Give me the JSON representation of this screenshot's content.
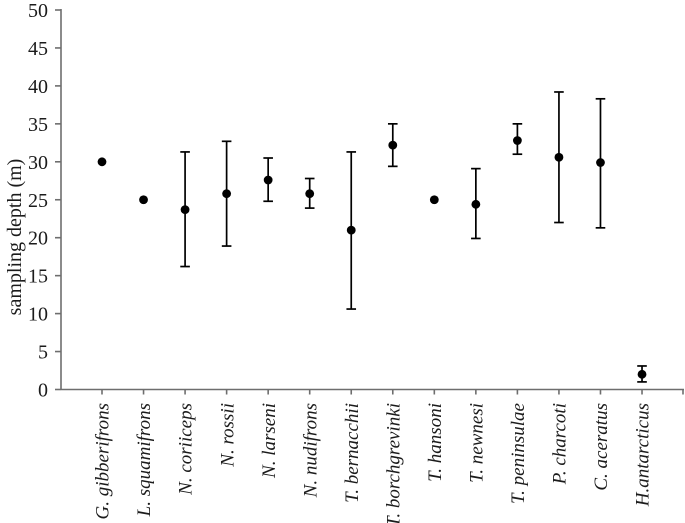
{
  "figure": {
    "background": "#ffffff",
    "axis_color": "#6e6e6e",
    "marker_color": "#000000",
    "text_color": "#1b1b1b"
  },
  "chart_data": {
    "type": "scatter",
    "subtype": "mean-with-error-bars",
    "title": "",
    "xlabel": "",
    "ylabel": "sampling depth (m)",
    "ylim": [
      0,
      50
    ],
    "yticks": [
      0,
      5,
      10,
      15,
      20,
      25,
      30,
      35,
      40,
      45,
      50
    ],
    "grid": false,
    "legend": "none",
    "marker": "filled-circle",
    "categories": [
      "G. gibberifrons",
      "L. squamifrons",
      "N. coriiceps",
      "N. rossii",
      "N. larseni",
      "N. nudifrons",
      "T. bernacchii",
      "T. borchgrevinki",
      "T. hansoni",
      "T. newnesi",
      "T. peninsulae",
      "P. charcoti",
      "C. aceratus",
      "H.antarcticus"
    ],
    "series": [
      {
        "name": "sampling depth",
        "points": [
          {
            "species": "G. gibberifrons",
            "mean": 30.0,
            "lo": null,
            "hi": null
          },
          {
            "species": "L. squamifrons",
            "mean": 25.0,
            "lo": null,
            "hi": null
          },
          {
            "species": "N. coriiceps",
            "mean": 23.7,
            "lo": 16.2,
            "hi": 31.3
          },
          {
            "species": "N. rossii",
            "mean": 25.8,
            "lo": 18.9,
            "hi": 32.7
          },
          {
            "species": "N. larseni",
            "mean": 27.6,
            "lo": 24.8,
            "hi": 30.5
          },
          {
            "species": "N. nudifrons",
            "mean": 25.8,
            "lo": 23.9,
            "hi": 27.8
          },
          {
            "species": "T. bernacchii",
            "mean": 21.0,
            "lo": 10.6,
            "hi": 31.3
          },
          {
            "species": "T. borchgrevinki",
            "mean": 32.2,
            "lo": 29.4,
            "hi": 35.0
          },
          {
            "species": "T. hansoni",
            "mean": 25.0,
            "lo": null,
            "hi": null
          },
          {
            "species": "T. newnesi",
            "mean": 24.4,
            "lo": 19.9,
            "hi": 29.1
          },
          {
            "species": "T. peninsulae",
            "mean": 32.8,
            "lo": 31.0,
            "hi": 35.0
          },
          {
            "species": "P. charcoti",
            "mean": 30.6,
            "lo": 22.0,
            "hi": 39.2
          },
          {
            "species": "C. aceratus",
            "mean": 29.9,
            "lo": 21.3,
            "hi": 38.3
          },
          {
            "species": "H.antarcticus",
            "mean": 2.0,
            "lo": 1.0,
            "hi": 3.1
          }
        ]
      }
    ]
  }
}
